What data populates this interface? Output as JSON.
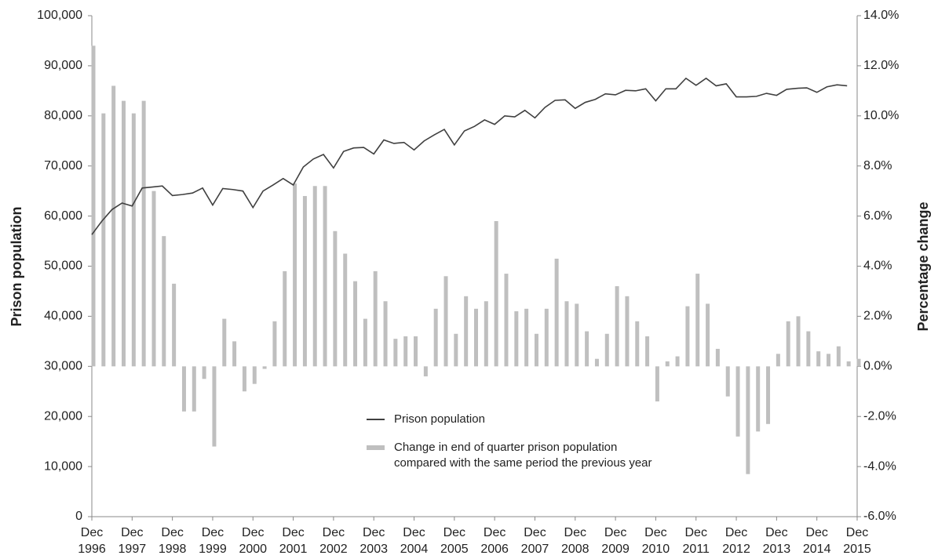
{
  "chart_data": {
    "type": "combo",
    "categories": [
      "Dec 1996",
      null,
      null,
      null,
      "Dec 1997",
      null,
      null,
      null,
      "Dec 1998",
      null,
      null,
      null,
      "Dec 1999",
      null,
      null,
      null,
      "Dec 2000",
      null,
      null,
      null,
      "Dec 2001",
      null,
      null,
      null,
      "Dec 2002",
      null,
      null,
      null,
      "Dec 2003",
      null,
      null,
      null,
      "Dec 2004",
      null,
      null,
      null,
      "Dec 2005",
      null,
      null,
      null,
      "Dec 2006",
      null,
      null,
      null,
      "Dec 2007",
      null,
      null,
      null,
      "Dec 2008",
      null,
      null,
      null,
      "Dec 2009",
      null,
      null,
      null,
      "Dec 2010",
      null,
      null,
      null,
      "Dec 2011",
      null,
      null,
      null,
      "Dec 2012",
      null,
      null,
      null,
      "Dec 2013",
      null,
      null,
      null,
      "Dec 2014",
      null,
      null,
      null,
      "Dec 2015"
    ],
    "y_label": "Prison population",
    "y2_label": "Percentage change",
    "ylim": [
      0,
      100000
    ],
    "yticks": [
      0,
      {
        "value": 10000,
        "label": "10,000"
      },
      {
        "value": 20000,
        "label": "20,000"
      },
      {
        "value": 30000,
        "label": "30,000"
      },
      {
        "value": 40000,
        "label": "40,000"
      },
      {
        "value": 50000,
        "label": "50,000"
      },
      {
        "value": 60000,
        "label": "60,000"
      },
      {
        "value": 70000,
        "label": "70,000"
      },
      {
        "value": 80000,
        "label": "80,000"
      },
      {
        "value": 90000,
        "label": "90,000"
      },
      {
        "value": 100000,
        "label": "100,000"
      }
    ],
    "y2lim": [
      -6,
      14
    ],
    "y2ticks": [
      {
        "value": -6,
        "label": "-6.0%"
      },
      {
        "value": -4,
        "label": "-4.0%"
      },
      {
        "value": -2,
        "label": "-2.0%"
      },
      {
        "value": 0,
        "label": "0.0%"
      },
      {
        "value": 2,
        "label": "2.0%"
      },
      {
        "value": 4,
        "label": "4.0%"
      },
      {
        "value": 6,
        "label": "6.0%"
      },
      {
        "value": 8,
        "label": "8.0%"
      },
      {
        "value": 10,
        "label": "10.0%"
      },
      {
        "value": 12,
        "label": "12.0%"
      },
      {
        "value": 14,
        "label": "14.0%"
      }
    ],
    "series": [
      {
        "name": "Prison population",
        "type": "line",
        "color": "#404040",
        "values": [
          56300,
          59000,
          61300,
          62600,
          62000,
          65600,
          65800,
          66000,
          64100,
          64300,
          64600,
          65600,
          62200,
          65500,
          65300,
          65000,
          61700,
          65000,
          66200,
          67500,
          66200,
          69800,
          71400,
          72300,
          69600,
          72900,
          73600,
          73700,
          72400,
          75200,
          74500,
          74700,
          73200,
          75000,
          76200,
          77300,
          74200,
          77000,
          77900,
          79200,
          78300,
          80000,
          79800,
          81100,
          79600,
          81700,
          83100,
          83200,
          81500,
          82700,
          83300,
          84400,
          84200,
          85100,
          85000,
          85400,
          83000,
          85400,
          85400,
          87500,
          86100,
          87500,
          86000,
          86400,
          83800,
          83800,
          83900,
          84500,
          84100,
          85300,
          85500,
          85600,
          84700,
          85800,
          86200,
          86000,
          null
        ]
      },
      {
        "name": "Change in end of quarter prison population compared with the same period the previous year",
        "type": "bar",
        "color": "#bfbfbf",
        "axis": "y2",
        "values": [
          12.8,
          10.1,
          11.2,
          10.6,
          10.1,
          10.6,
          7.0,
          5.2,
          3.3,
          -1.8,
          -1.8,
          -0.5,
          -3.2,
          1.9,
          1.0,
          -1.0,
          -0.7,
          -0.1,
          1.8,
          3.8,
          7.3,
          6.8,
          7.2,
          7.2,
          5.4,
          4.5,
          3.4,
          1.9,
          3.8,
          2.6,
          1.1,
          1.2,
          1.2,
          -0.4,
          2.3,
          3.6,
          1.3,
          2.8,
          2.3,
          2.6,
          5.8,
          3.7,
          2.2,
          2.3,
          1.3,
          2.3,
          4.3,
          2.6,
          2.5,
          1.4,
          0.3,
          1.3,
          3.2,
          2.8,
          1.8,
          1.2,
          -1.4,
          0.2,
          0.4,
          2.4,
          3.7,
          2.5,
          0.7,
          -1.2,
          -2.8,
          -4.3,
          -2.6,
          -2.3,
          0.5,
          1.8,
          2.0,
          1.4,
          0.6,
          0.5,
          0.8,
          0.2,
          0.3
        ]
      }
    ]
  }
}
